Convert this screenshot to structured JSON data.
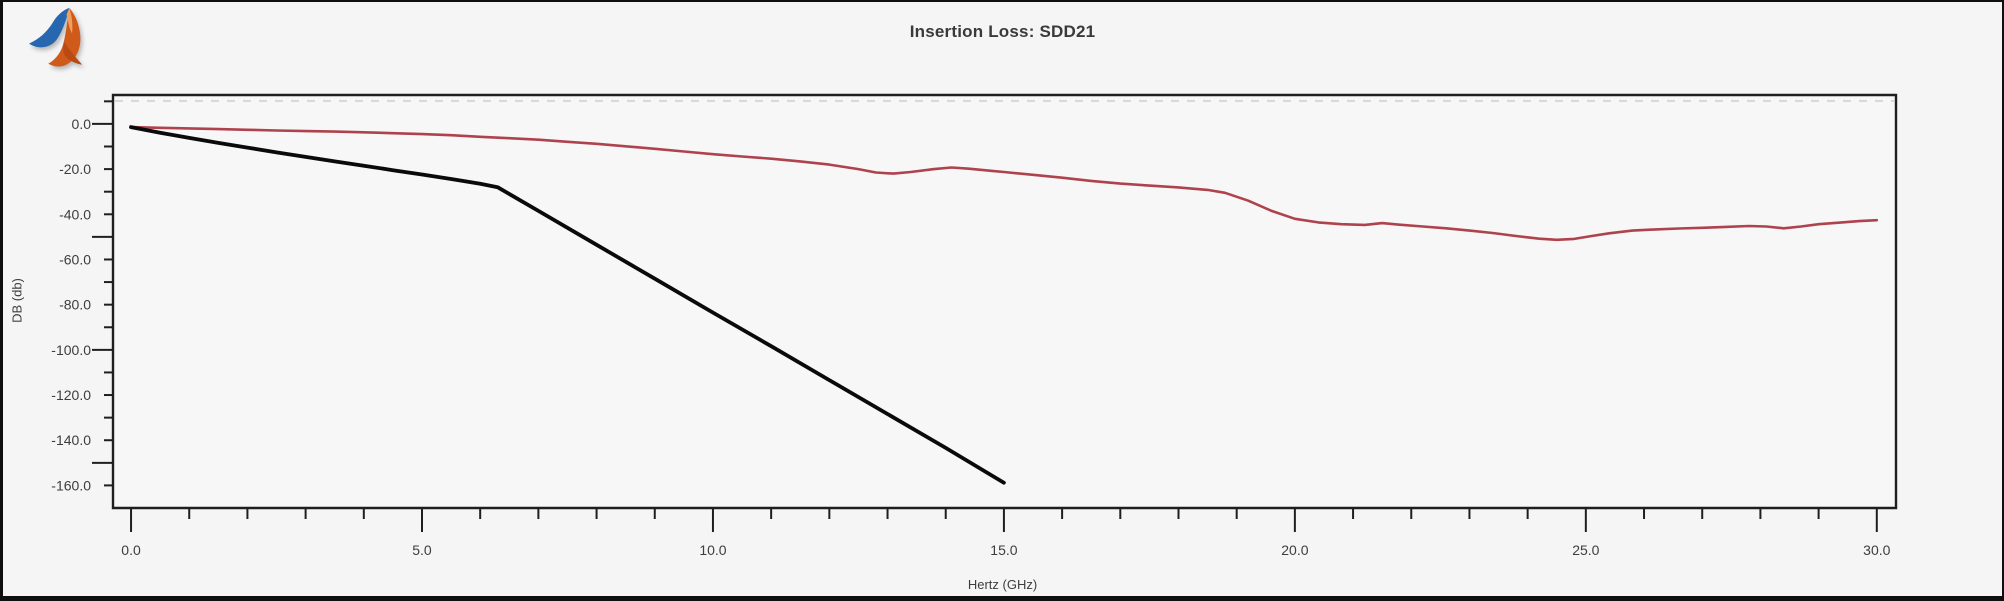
{
  "figure": {
    "logo_icon": "matlab-logo"
  },
  "chart_data": {
    "type": "line",
    "title": "Insertion Loss: SDD21",
    "xlabel": "Hertz (GHz)",
    "ylabel": "DB (db)",
    "xlim": [
      -0.31,
      30.33
    ],
    "ylim": [
      -170,
      12.8
    ],
    "grid": false,
    "legend": "none",
    "x_axis": {
      "major_ticks": [
        0,
        5,
        10,
        15,
        20,
        25,
        30
      ],
      "major_labels": [
        "0.0",
        "5.0",
        "10.0",
        "15.0",
        "20.0",
        "25.0",
        "30.0"
      ],
      "minor_step": 1,
      "minor_range": [
        0,
        30
      ]
    },
    "y_axis": {
      "labeled_ticks": [
        0,
        -20,
        -40,
        -60,
        -80,
        -100,
        -120,
        -140,
        -160
      ],
      "tick_labels": [
        "0.0",
        "-20.0",
        "-40.0",
        "-60.0",
        "-80.0",
        "-100.0",
        "-120.0",
        "-140.0",
        "-160.0"
      ],
      "long_ticks": [
        0,
        -50,
        -100,
        -150
      ],
      "minor_step": 10,
      "minor_range": [
        10,
        -160
      ]
    },
    "colors": {
      "axis": "#1f1f1f",
      "tick_text": "#3d3d3d",
      "title_text": "#3a3a3a",
      "background": "#f5f5f6",
      "plot_background": "#f7f7f8",
      "top_dash": "#cdcdcd",
      "red_series": "#ae434d",
      "black_series": "#0a0a0a"
    },
    "series": [
      {
        "name": "red",
        "color": "#ae434d",
        "width": 2.6,
        "points": [
          [
            0,
            -1.4
          ],
          [
            0.5,
            -1.7
          ],
          [
            1,
            -2
          ],
          [
            1.5,
            -2.3
          ],
          [
            2,
            -2.6
          ],
          [
            2.5,
            -2.9
          ],
          [
            3,
            -3.2
          ],
          [
            3.5,
            -3.4
          ],
          [
            4,
            -3.7
          ],
          [
            4.5,
            -4.1
          ],
          [
            5,
            -4.5
          ],
          [
            5.5,
            -5
          ],
          [
            6,
            -5.7
          ],
          [
            6.5,
            -6.3
          ],
          [
            7,
            -7
          ],
          [
            7.5,
            -7.9
          ],
          [
            8,
            -8.8
          ],
          [
            8.5,
            -9.9
          ],
          [
            9,
            -11
          ],
          [
            9.5,
            -12.2
          ],
          [
            10,
            -13.4
          ],
          [
            10.5,
            -14.4
          ],
          [
            11,
            -15.4
          ],
          [
            11.5,
            -16.6
          ],
          [
            12,
            -18
          ],
          [
            12.5,
            -20
          ],
          [
            12.8,
            -21.5
          ],
          [
            13.1,
            -22
          ],
          [
            13.4,
            -21.3
          ],
          [
            13.8,
            -20
          ],
          [
            14.1,
            -19.3
          ],
          [
            14.4,
            -19.8
          ],
          [
            14.8,
            -20.8
          ],
          [
            15,
            -21.3
          ],
          [
            15.5,
            -22.5
          ],
          [
            16,
            -23.8
          ],
          [
            16.5,
            -25.2
          ],
          [
            17,
            -26.4
          ],
          [
            17.5,
            -27.3
          ],
          [
            18,
            -28.1
          ],
          [
            18.5,
            -29.2
          ],
          [
            18.8,
            -30.5
          ],
          [
            19.2,
            -34
          ],
          [
            19.6,
            -38.5
          ],
          [
            20,
            -42
          ],
          [
            20.4,
            -43.6
          ],
          [
            20.8,
            -44.4
          ],
          [
            21.2,
            -44.7
          ],
          [
            21.5,
            -43.9
          ],
          [
            21.8,
            -44.6
          ],
          [
            22.2,
            -45.4
          ],
          [
            22.6,
            -46.2
          ],
          [
            23,
            -47.2
          ],
          [
            23.4,
            -48.3
          ],
          [
            23.8,
            -49.6
          ],
          [
            24.2,
            -50.8
          ],
          [
            24.5,
            -51.3
          ],
          [
            24.8,
            -50.9
          ],
          [
            25.1,
            -49.6
          ],
          [
            25.4,
            -48.4
          ],
          [
            25.8,
            -47.2
          ],
          [
            26.2,
            -46.7
          ],
          [
            26.6,
            -46.3
          ],
          [
            27,
            -46
          ],
          [
            27.4,
            -45.6
          ],
          [
            27.8,
            -45.2
          ],
          [
            28.1,
            -45.4
          ],
          [
            28.4,
            -46.2
          ],
          [
            28.7,
            -45.4
          ],
          [
            29,
            -44.4
          ],
          [
            29.4,
            -43.6
          ],
          [
            29.7,
            -43
          ],
          [
            30,
            -42.6
          ]
        ]
      },
      {
        "name": "black",
        "color": "#0a0a0a",
        "width": 3.8,
        "points": [
          [
            0,
            -1.4
          ],
          [
            0.5,
            -3.9
          ],
          [
            1,
            -6.2
          ],
          [
            1.5,
            -8.4
          ],
          [
            2,
            -10.5
          ],
          [
            2.5,
            -12.6
          ],
          [
            3,
            -14.6
          ],
          [
            3.5,
            -16.6
          ],
          [
            4,
            -18.5
          ],
          [
            4.5,
            -20.5
          ],
          [
            5,
            -22.4
          ],
          [
            5.5,
            -24.4
          ],
          [
            6,
            -26.5
          ],
          [
            6.3,
            -28
          ],
          [
            7,
            -38.5
          ],
          [
            8,
            -53.5
          ],
          [
            9,
            -68.5
          ],
          [
            10,
            -83.5
          ],
          [
            11,
            -98.4
          ],
          [
            12,
            -113.4
          ],
          [
            13,
            -128.4
          ],
          [
            14,
            -143.4
          ],
          [
            15,
            -158.8
          ]
        ]
      }
    ]
  }
}
